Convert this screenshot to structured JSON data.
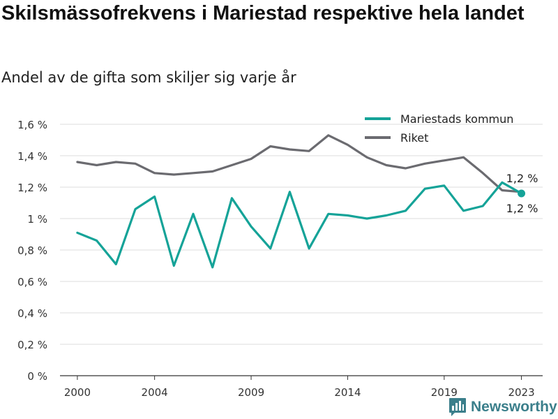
{
  "title": "Skilsmässofrekvens i Mariestad respektive hela landet",
  "subtitle": "Andel av de gifta som skiljer sig varje år",
  "brand": {
    "name": "Newsworthy",
    "icon": "bar-chart-logo-icon",
    "color": "#3b7f8b"
  },
  "chart_data": {
    "type": "line",
    "x": [
      2000,
      2001,
      2002,
      2003,
      2004,
      2005,
      2006,
      2007,
      2008,
      2009,
      2010,
      2011,
      2012,
      2013,
      2014,
      2015,
      2016,
      2017,
      2018,
      2019,
      2020,
      2021,
      2022,
      2023
    ],
    "x_ticks": [
      2000,
      2004,
      2009,
      2014,
      2019,
      2023
    ],
    "xlim": [
      1999.1,
      2024.1
    ],
    "ylim": [
      0,
      1.6
    ],
    "y_ticks": [
      0,
      0.2,
      0.4,
      0.6,
      0.8,
      1.0,
      1.2,
      1.4,
      1.6
    ],
    "y_tick_labels": [
      "0 %",
      "0,2 %",
      "0,4 %",
      "0,6 %",
      "0,8 %",
      "1 %",
      "1,2 %",
      "1,4 %",
      "1,6 %"
    ],
    "xlabel": "",
    "ylabel": "",
    "grid": "horizontal",
    "legend_position": "top-right",
    "series": [
      {
        "name": "Mariestads kommun",
        "color": "#15a398",
        "values": [
          0.91,
          0.86,
          0.71,
          1.06,
          1.14,
          0.7,
          1.03,
          0.69,
          1.13,
          0.95,
          0.81,
          1.17,
          0.81,
          1.03,
          1.02,
          1.0,
          1.02,
          1.05,
          1.19,
          1.21,
          1.05,
          1.08,
          1.23,
          1.16
        ]
      },
      {
        "name": "Riket",
        "color": "#6b6b70",
        "values": [
          1.36,
          1.34,
          1.36,
          1.35,
          1.29,
          1.28,
          1.29,
          1.3,
          1.34,
          1.38,
          1.46,
          1.44,
          1.43,
          1.53,
          1.47,
          1.39,
          1.34,
          1.32,
          1.35,
          1.37,
          1.39,
          1.29,
          1.18,
          1.17
        ]
      }
    ],
    "annotations": [
      {
        "text": "1,2 %",
        "series": "Riket",
        "x": 2023,
        "position": "above"
      },
      {
        "text": "1,2 %",
        "series": "Mariestads kommun",
        "x": 2023,
        "position": "below"
      }
    ]
  }
}
